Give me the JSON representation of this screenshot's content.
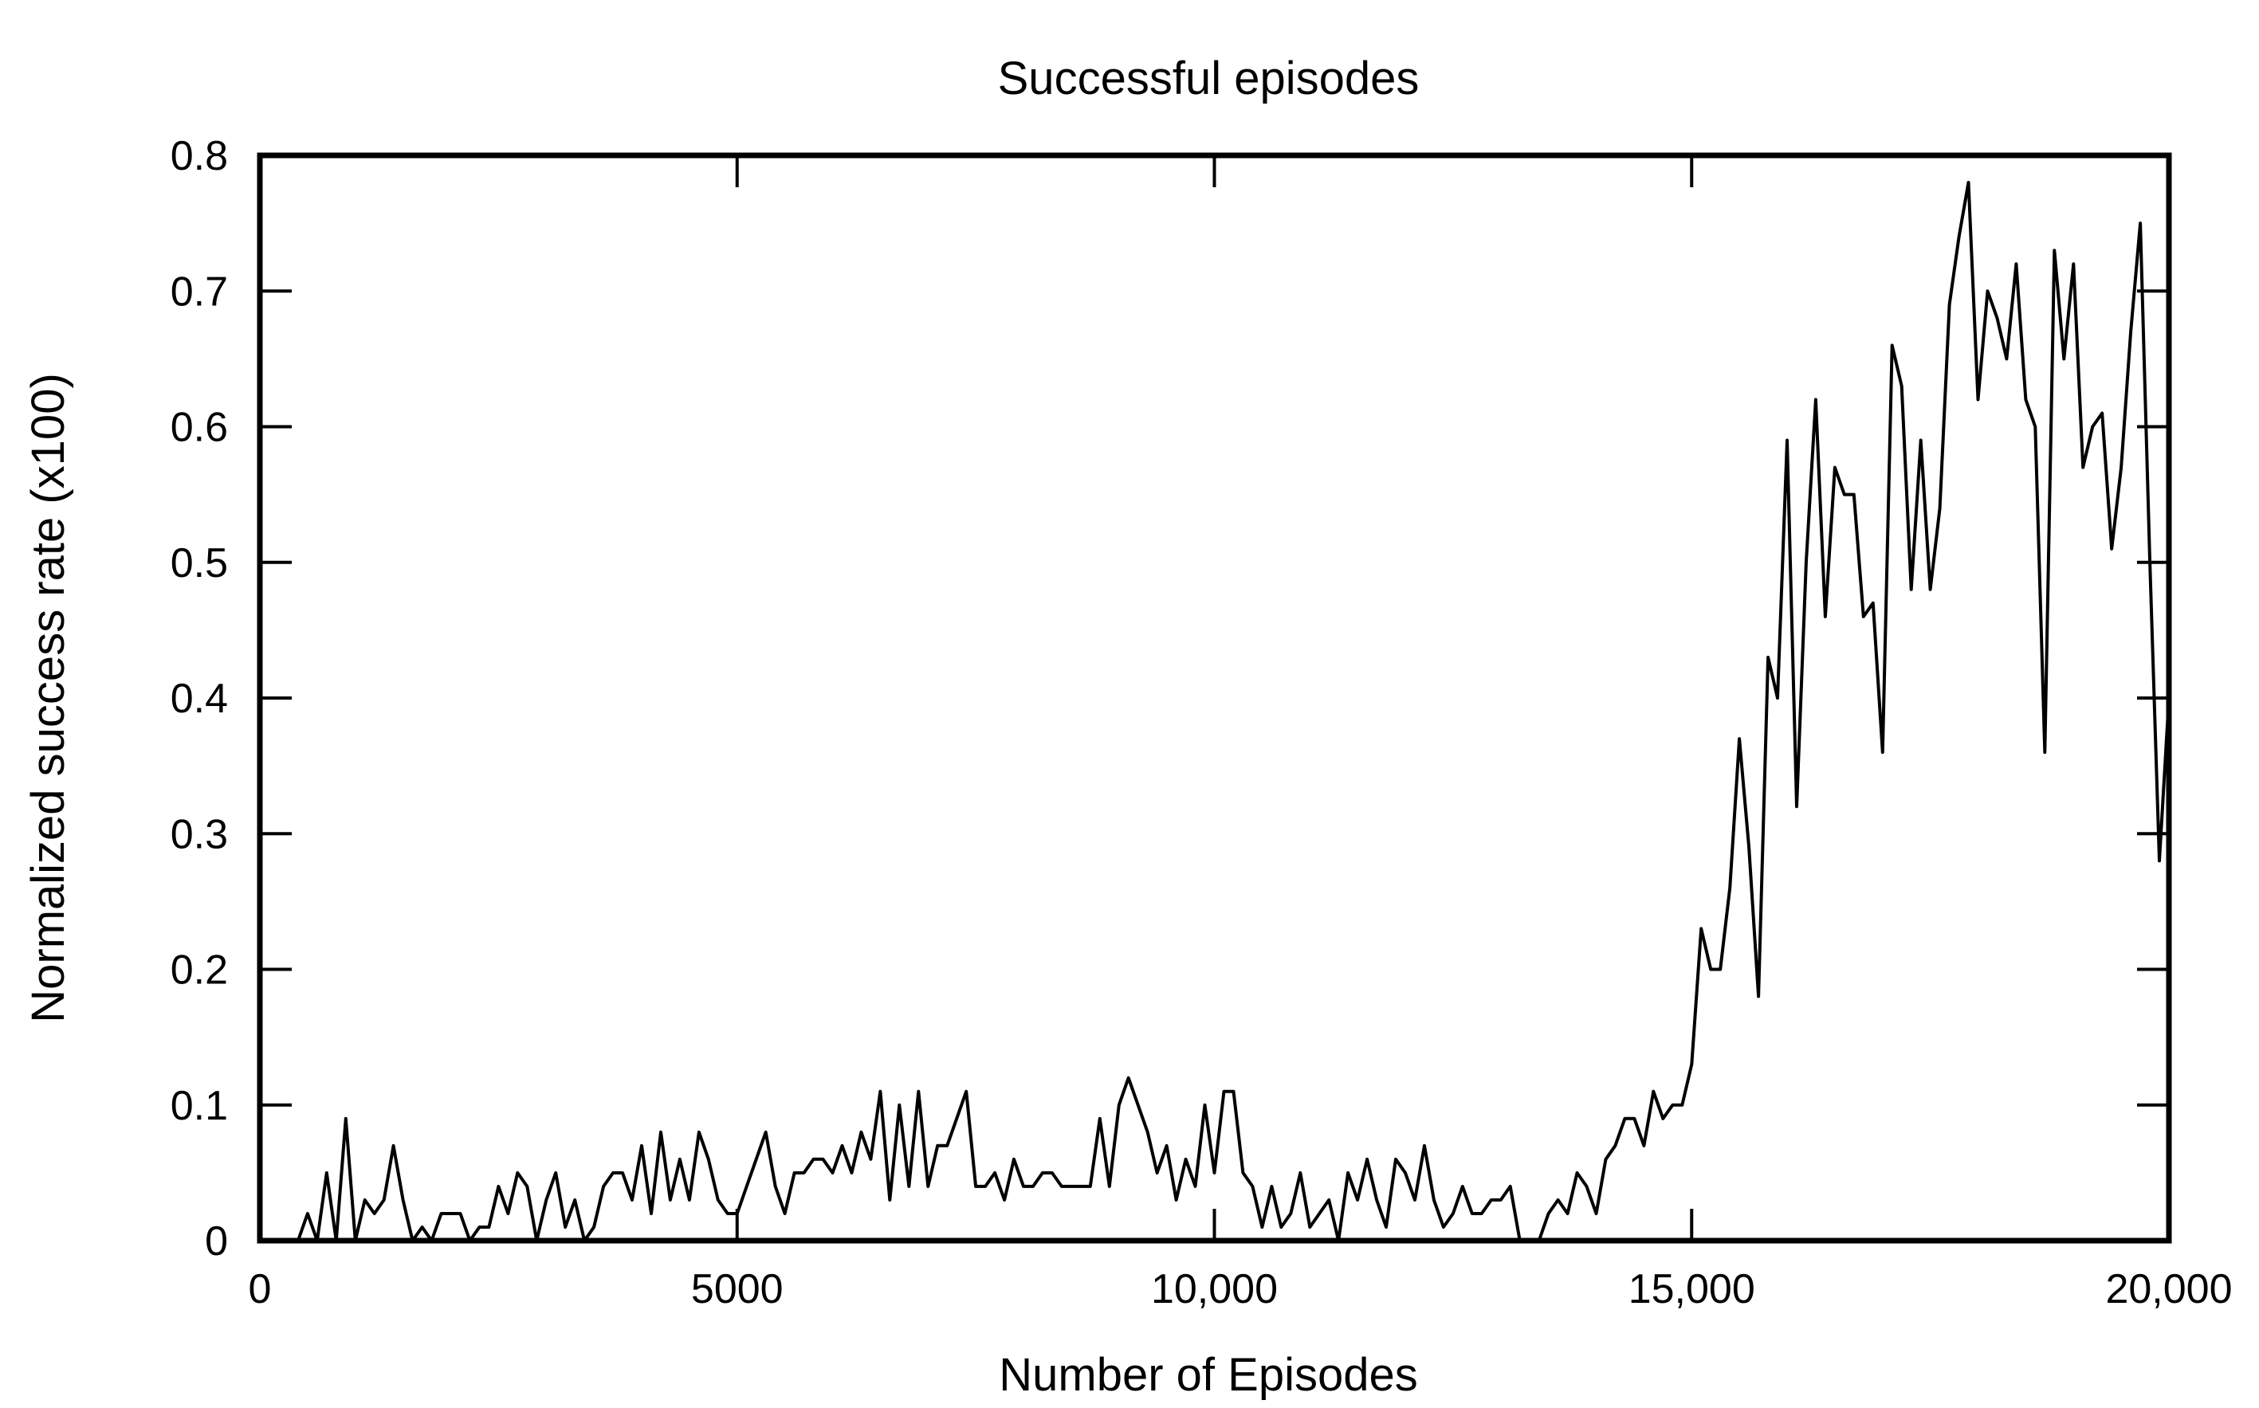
{
  "chart_data": {
    "type": "line",
    "title": "Successful episodes",
    "xlabel": "Number of Episodes",
    "ylabel": "Normalized success rate (x100)",
    "xlim": [
      0,
      20000
    ],
    "ylim": [
      0,
      0.8
    ],
    "grid": false,
    "x_ticks": [
      0,
      5000,
      10000,
      15000,
      20000
    ],
    "x_tick_labels": [
      "0",
      "5000",
      "10,000",
      "15,000",
      "20,000"
    ],
    "y_ticks": [
      0,
      0.1,
      0.2,
      0.3,
      0.4,
      0.5,
      0.6,
      0.7,
      0.8
    ],
    "y_tick_labels": [
      "0",
      "0.1",
      "0.2",
      "0.3",
      "0.4",
      "0.5",
      "0.6",
      "0.7",
      "0.8"
    ],
    "series": [
      {
        "color": "#000000",
        "x": [
          400,
          500,
          600,
          700,
          800,
          900,
          1000,
          1100,
          1200,
          1300,
          1400,
          1500,
          1600,
          1700,
          1800,
          1900,
          2000,
          2100,
          2200,
          2300,
          2400,
          2500,
          2600,
          2700,
          2800,
          2900,
          3000,
          3100,
          3200,
          3300,
          3400,
          3500,
          3600,
          3700,
          3800,
          3900,
          4000,
          4100,
          4200,
          4300,
          4400,
          4500,
          4600,
          4700,
          4800,
          4900,
          5000,
          5100,
          5200,
          5300,
          5400,
          5500,
          5600,
          5700,
          5800,
          5900,
          6000,
          6100,
          6200,
          6300,
          6400,
          6500,
          6600,
          6700,
          6800,
          6900,
          7000,
          7100,
          7200,
          7300,
          7400,
          7500,
          7600,
          7700,
          7800,
          7900,
          8000,
          8100,
          8200,
          8300,
          8400,
          8500,
          8600,
          8700,
          8800,
          8900,
          9000,
          9100,
          9200,
          9300,
          9400,
          9500,
          9600,
          9700,
          9800,
          9900,
          10000,
          10100,
          10200,
          10300,
          10400,
          10500,
          10600,
          10700,
          10800,
          10900,
          11000,
          11100,
          11200,
          11300,
          11400,
          11500,
          11600,
          11700,
          11800,
          11900,
          12000,
          12100,
          12200,
          12300,
          12400,
          12500,
          12600,
          12700,
          12800,
          12900,
          13000,
          13100,
          13200,
          13300,
          13400,
          13500,
          13600,
          13700,
          13800,
          13900,
          14000,
          14100,
          14200,
          14300,
          14400,
          14500,
          14600,
          14700,
          14800,
          14900,
          15000,
          15100,
          15200,
          15300,
          15400,
          15500,
          15600,
          15700,
          15800,
          15900,
          16000,
          16100,
          16200,
          16300,
          16400,
          16500,
          16600,
          16700,
          16800,
          16900,
          17000,
          17100,
          17200,
          17300,
          17400,
          17500,
          17600,
          17700,
          17800,
          17900,
          18000,
          18100,
          18200,
          18300,
          18400,
          18500,
          18600,
          18700,
          18800,
          18900,
          19000,
          19100,
          19200,
          19300,
          19400,
          19500,
          19600,
          19700,
          19800,
          19900,
          20000
        ],
        "y": [
          0,
          0.02,
          0,
          0.05,
          0,
          0.09,
          0,
          0.03,
          0.02,
          0.03,
          0.07,
          0.03,
          0,
          0.01,
          0,
          0.02,
          0.02,
          0.02,
          0,
          0.01,
          0.01,
          0.04,
          0.02,
          0.05,
          0.04,
          0,
          0.03,
          0.05,
          0.01,
          0.03,
          0,
          0.01,
          0.04,
          0.05,
          0.05,
          0.03,
          0.07,
          0.02,
          0.08,
          0.03,
          0.06,
          0.03,
          0.08,
          0.06,
          0.03,
          0.02,
          0.02,
          0.04,
          0.06,
          0.08,
          0.04,
          0.02,
          0.05,
          0.05,
          0.06,
          0.06,
          0.05,
          0.07,
          0.05,
          0.08,
          0.06,
          0.11,
          0.03,
          0.1,
          0.04,
          0.11,
          0.04,
          0.07,
          0.07,
          0.09,
          0.11,
          0.04,
          0.04,
          0.05,
          0.03,
          0.06,
          0.04,
          0.04,
          0.05,
          0.05,
          0.04,
          0.04,
          0.04,
          0.04,
          0.09,
          0.04,
          0.1,
          0.12,
          0.1,
          0.08,
          0.05,
          0.07,
          0.03,
          0.06,
          0.04,
          0.1,
          0.05,
          0.11,
          0.11,
          0.05,
          0.04,
          0.01,
          0.04,
          0.01,
          0.02,
          0.05,
          0.01,
          0.02,
          0.03,
          0,
          0.05,
          0.03,
          0.06,
          0.03,
          0.01,
          0.06,
          0.05,
          0.03,
          0.07,
          0.03,
          0.01,
          0.02,
          0.04,
          0.02,
          0.02,
          0.03,
          0.03,
          0.04,
          0,
          0,
          0,
          0.02,
          0.03,
          0.02,
          0.05,
          0.04,
          0.02,
          0.06,
          0.07,
          0.09,
          0.09,
          0.07,
          0.11,
          0.09,
          0.1,
          0.1,
          0.13,
          0.23,
          0.2,
          0.2,
          0.26,
          0.37,
          0.29,
          0.18,
          0.43,
          0.4,
          0.59,
          0.32,
          0.5,
          0.62,
          0.46,
          0.57,
          0.55,
          0.55,
          0.46,
          0.47,
          0.36,
          0.66,
          0.63,
          0.48,
          0.59,
          0.48,
          0.54,
          0.69,
          0.74,
          0.78,
          0.62,
          0.7,
          0.68,
          0.65,
          0.72,
          0.62,
          0.6,
          0.36,
          0.73,
          0.65,
          0.72,
          0.57,
          0.6,
          0.61,
          0.51,
          0.57,
          0.67,
          0.75,
          0.5,
          0.28,
          0.4
        ]
      }
    ]
  }
}
